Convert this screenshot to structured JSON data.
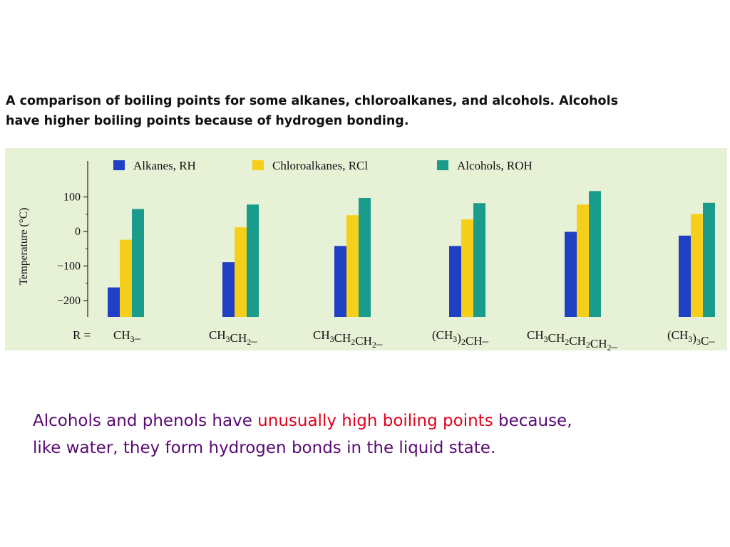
{
  "caption": {
    "line1": "A comparison of boiling points for some alkanes, chloroalkanes, and alcohols. Alcohols",
    "line2": "have higher boiling points because of hydrogen bonding."
  },
  "footer": {
    "part1": "Alcohols and phenols have ",
    "highlight": "unusually high boiling points",
    "part2": " because,",
    "part3": "like water, they form hydrogen bonds in the liquid state."
  },
  "colors": {
    "alkanes": "#1f3fc4",
    "chloroalkanes": "#f6cf1b",
    "alcohols": "#1a9c8c",
    "chart_background": "#e6f1d6",
    "highlight_text": "#e3001b",
    "body_text": "#5a0a73"
  },
  "chart_data": {
    "type": "bar",
    "ylabel": "Temperature (°C)",
    "ylim": [
      -250,
      120
    ],
    "yticks": [
      100,
      0,
      -100,
      -200
    ],
    "ytick_labels": [
      "100",
      "0",
      "−100",
      "−200"
    ],
    "row_label": "R =",
    "categories": [
      {
        "base": "CH",
        "sub": "3",
        "rest": "–"
      },
      {
        "base": "CH",
        "sub": "3",
        "rest": "CH",
        "sub2": "2",
        "rest2": "–"
      },
      {
        "base": "CH",
        "sub": "3",
        "rest": "CH",
        "sub2": "2",
        "rest2": "CH",
        "sub3": "2",
        "rest3": "–"
      },
      {
        "base": "(CH",
        "sub": "3",
        "rest": ")",
        "sub2": "2",
        "rest2": "CH–"
      },
      {
        "base": "CH",
        "sub": "3",
        "rest": "CH",
        "sub2": "2",
        "rest2": "CH",
        "sub3": "2",
        "rest3": "CH",
        "sub4": "2",
        "rest4": "–"
      },
      {
        "base": "(CH",
        "sub": "3",
        "rest": ")",
        "sub2": "3",
        "rest2": "C–"
      }
    ],
    "legend_position": "top",
    "series": [
      {
        "name": "Alkanes, RH",
        "values": [
          -162,
          -89,
          -42,
          -42,
          -1,
          -12
        ]
      },
      {
        "name": "Chloroalkanes, RCl",
        "values": [
          -24,
          12,
          47,
          35,
          78,
          51
        ]
      },
      {
        "name": "Alcohols, ROH",
        "values": [
          65,
          78,
          97,
          82,
          117,
          83
        ]
      }
    ]
  }
}
